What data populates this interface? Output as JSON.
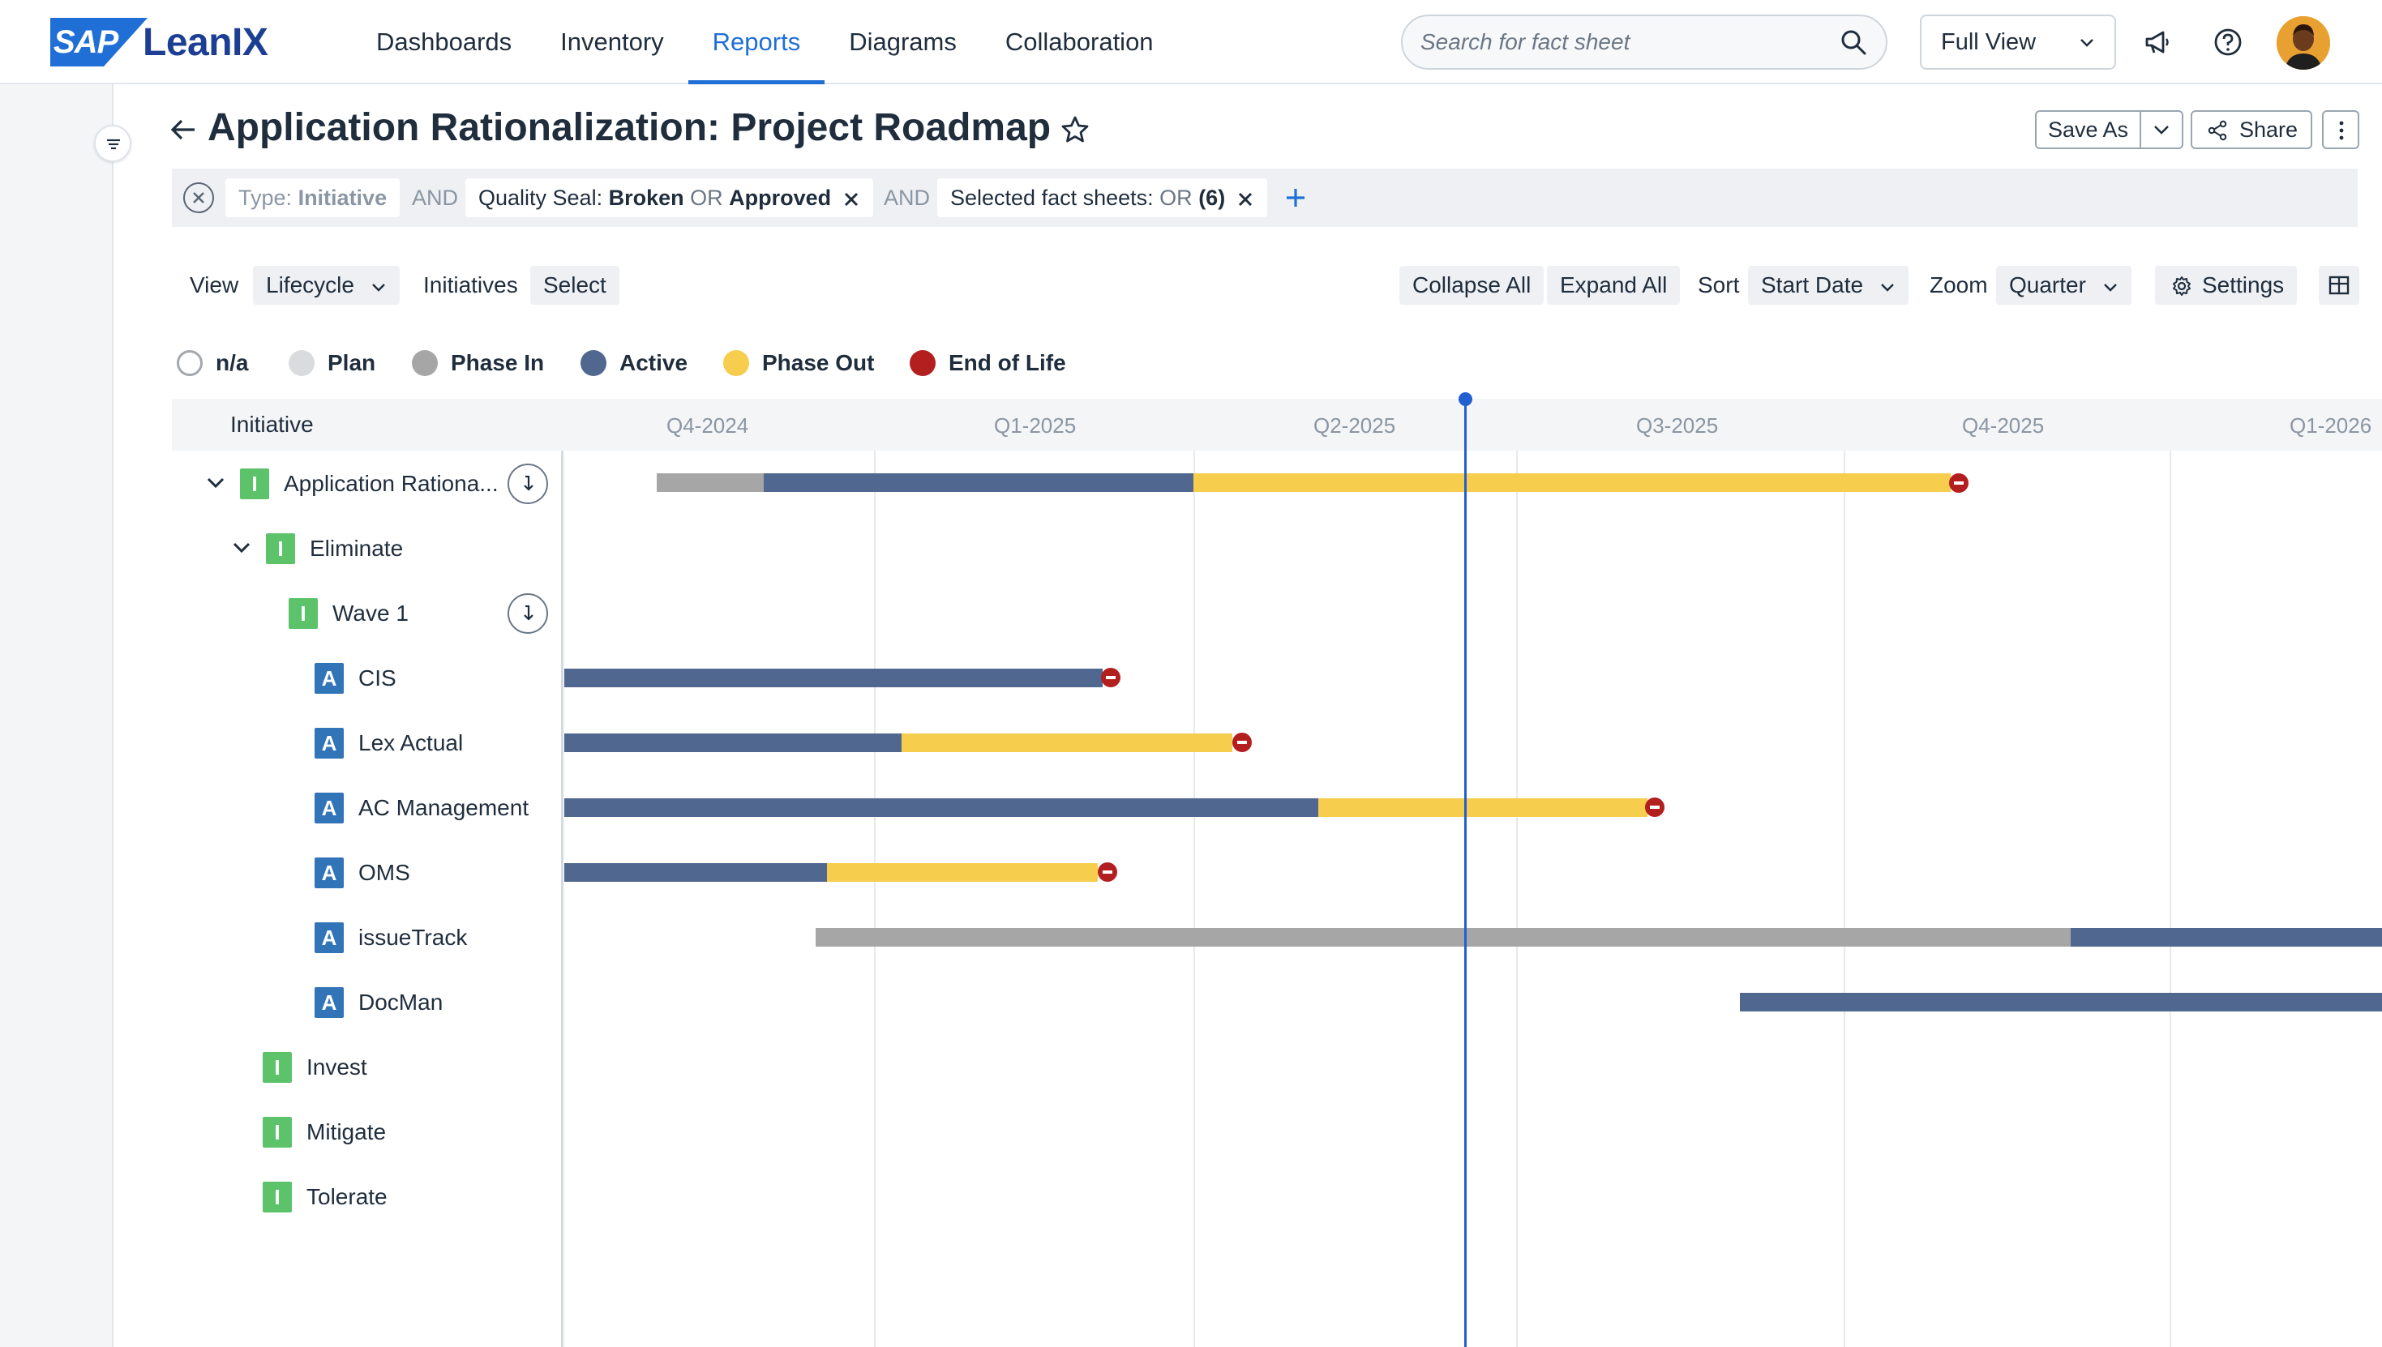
{
  "nav": {
    "logo_badge": "SAP",
    "logo_text": "LeanIX",
    "links": [
      "Dashboards",
      "Inventory",
      "Reports",
      "Diagrams",
      "Collaboration"
    ],
    "search_placeholder": "Search for fact sheet",
    "view_select": "Full View"
  },
  "header": {
    "title": "Application Rationalization: Project Roadmap",
    "save_as": "Save As",
    "share": "Share"
  },
  "filters": {
    "type_key": "Type:",
    "type_value": "Initiative",
    "and1": "AND",
    "quality_key": "Quality Seal:",
    "quality_v1": "Broken",
    "quality_or": "OR",
    "quality_v2": "Approved",
    "and2": "AND",
    "selected_key": "Selected fact sheets:",
    "selected_or": "OR",
    "selected_count": "(6)"
  },
  "toolbar": {
    "view_label": "View",
    "view_value": "Lifecycle",
    "initiatives_label": "Initiatives",
    "initiatives_value": "Select",
    "collapse_all": "Collapse All",
    "expand_all": "Expand All",
    "sort_label": "Sort",
    "sort_value": "Start Date",
    "zoom_label": "Zoom",
    "zoom_value": "Quarter",
    "settings": "Settings"
  },
  "legend": [
    {
      "label": "n/a",
      "color": "#ffffff"
    },
    {
      "label": "Plan",
      "color": "#d9dbde"
    },
    {
      "label": "Phase In",
      "color": "#a6a6a6"
    },
    {
      "label": "Active",
      "color": "#50678f"
    },
    {
      "label": "Phase Out",
      "color": "#f6cd4c"
    },
    {
      "label": "End of Life",
      "color": "#b31e1e"
    }
  ],
  "roadmap": {
    "column_header": "Initiative",
    "quarters": [
      "Q4-2024",
      "Q1-2025",
      "Q2-2025",
      "Q3-2025",
      "Q4-2025",
      "Q1-2026"
    ],
    "rows": [
      {
        "type": "I",
        "label": "Application Rationa..."
      },
      {
        "type": "I",
        "label": "Eliminate"
      },
      {
        "type": "I",
        "label": "Wave 1"
      },
      {
        "type": "A",
        "label": "CIS"
      },
      {
        "type": "A",
        "label": "Lex Actual"
      },
      {
        "type": "A",
        "label": "AC Management"
      },
      {
        "type": "A",
        "label": "OMS"
      },
      {
        "type": "A",
        "label": "issueTrack"
      },
      {
        "type": "A",
        "label": "DocMan"
      },
      {
        "type": "I",
        "label": "Invest"
      },
      {
        "type": "I",
        "label": "Mitigate"
      },
      {
        "type": "I",
        "label": "Tolerate"
      }
    ]
  }
}
